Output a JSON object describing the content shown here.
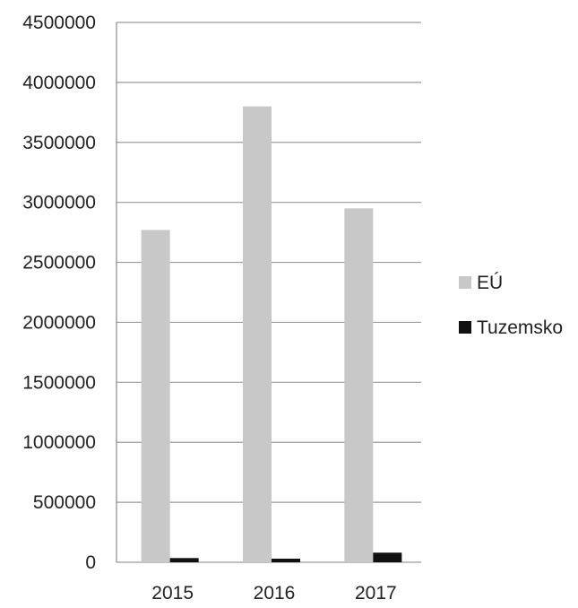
{
  "chart_data": {
    "type": "bar",
    "categories": [
      "2015",
      "2016",
      "2017"
    ],
    "series": [
      {
        "name": "EÚ",
        "values": [
          2770000,
          3800000,
          2950000
        ]
      },
      {
        "name": "Tuzemsko",
        "values": [
          35000,
          30000,
          80000
        ]
      }
    ],
    "ylim": [
      0,
      4500000
    ],
    "yticks": [
      "0",
      "500000",
      "1000000",
      "1500000",
      "2000000",
      "2500000",
      "3000000",
      "3500000",
      "4000000",
      "4500000"
    ],
    "title": "",
    "xlabel": "",
    "ylabel": "",
    "grid": true,
    "legend_position": "right",
    "colors": {
      "EÚ": "#c8c8c8",
      "Tuzemsko": "#111111"
    }
  }
}
